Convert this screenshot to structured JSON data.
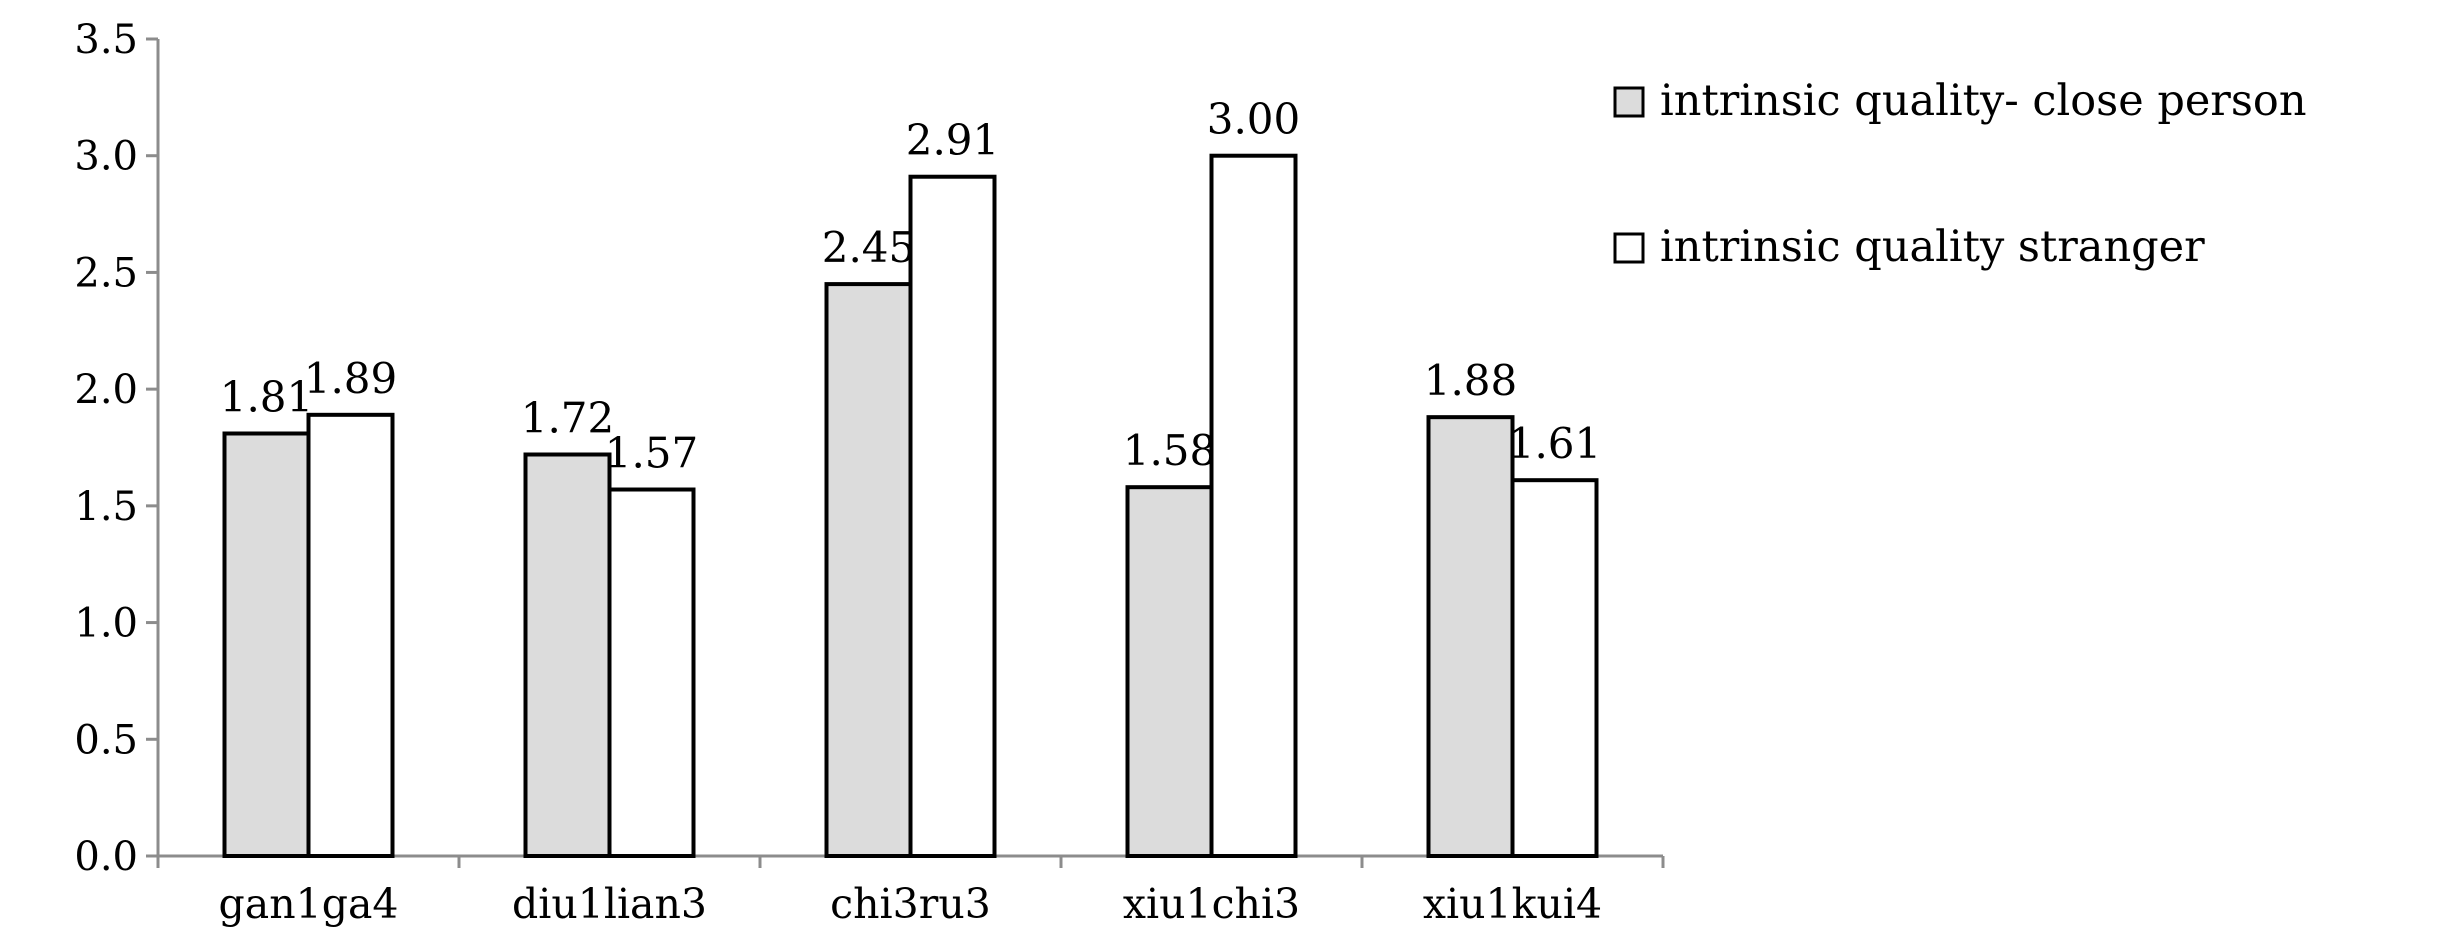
{
  "chart_data": {
    "type": "bar",
    "title": "",
    "xlabel": "",
    "ylabel": "",
    "categories": [
      "gan1ga4",
      "diu1lian3",
      "chi3ru3",
      "xiu1chi3",
      "xiu1kui4"
    ],
    "series": [
      {
        "name": "intrinsic quality- close person",
        "color": "#dcdcdc",
        "values": [
          1.81,
          1.72,
          2.45,
          1.58,
          1.88
        ],
        "labels": [
          "1.81",
          "1.72",
          "2.45",
          "1.58",
          "1.88"
        ]
      },
      {
        "name": "intrinsic quality stranger",
        "color": "#ffffff",
        "values": [
          1.89,
          1.57,
          2.91,
          3.0,
          1.61
        ],
        "labels": [
          "1.89",
          "1.57",
          "2.91",
          "3.00",
          "1.61"
        ]
      }
    ],
    "ylim": [
      0,
      3.5
    ],
    "yticks": [
      "0.0",
      "0.5",
      "1.0",
      "1.5",
      "2.0",
      "2.5",
      "3.0",
      "3.5"
    ],
    "grid": false,
    "legend_position": "top-right"
  }
}
